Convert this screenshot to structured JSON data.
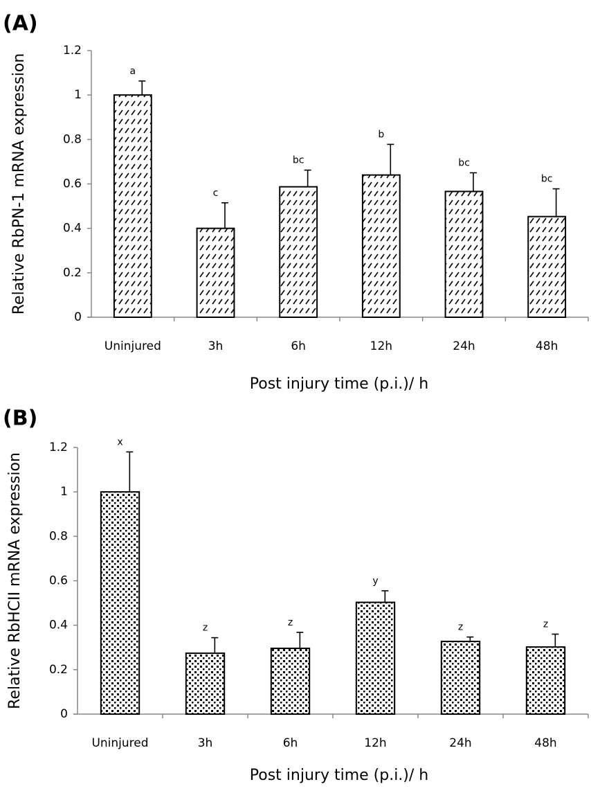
{
  "chart_data": [
    {
      "type": "bar",
      "panel": "(A)",
      "y_label": "Relative RbPN-1 mRNA expression",
      "x_label": "Post injury time (p.i.)/ h",
      "categories": [
        "Uninjured",
        "3h",
        "6h",
        "12h",
        "24h",
        "48h"
      ],
      "values": [
        1.0,
        0.4,
        0.587,
        0.64,
        0.566,
        0.453
      ],
      "errors": [
        0.063,
        0.115,
        0.075,
        0.138,
        0.084,
        0.125
      ],
      "annotations": [
        "a",
        "c",
        "bc",
        "b",
        "bc",
        "bc"
      ],
      "color": "#000000",
      "ylim": [
        0,
        1.2
      ],
      "yticks": [
        0,
        0.2,
        0.4,
        0.6,
        0.8,
        1,
        1.2
      ]
    },
    {
      "type": "bar",
      "panel": "(B)",
      "y_label": "Relative RbHCII mRNA expression",
      "x_label": "Post injury time (p.i.)/ h",
      "categories": [
        "Uninjured",
        "3h",
        "6h",
        "12h",
        "24h",
        "48h"
      ],
      "values": [
        1.0,
        0.274,
        0.296,
        0.503,
        0.327,
        0.302
      ],
      "errors": [
        0.18,
        0.07,
        0.072,
        0.052,
        0.02,
        0.058
      ],
      "annotations": [
        "x",
        "z",
        "z",
        "y",
        "z",
        "z"
      ],
      "color": "#000000",
      "ylim": [
        0,
        1.2
      ],
      "yticks": [
        0,
        0.2,
        0.4,
        0.6,
        0.8,
        1,
        1.2
      ]
    }
  ]
}
